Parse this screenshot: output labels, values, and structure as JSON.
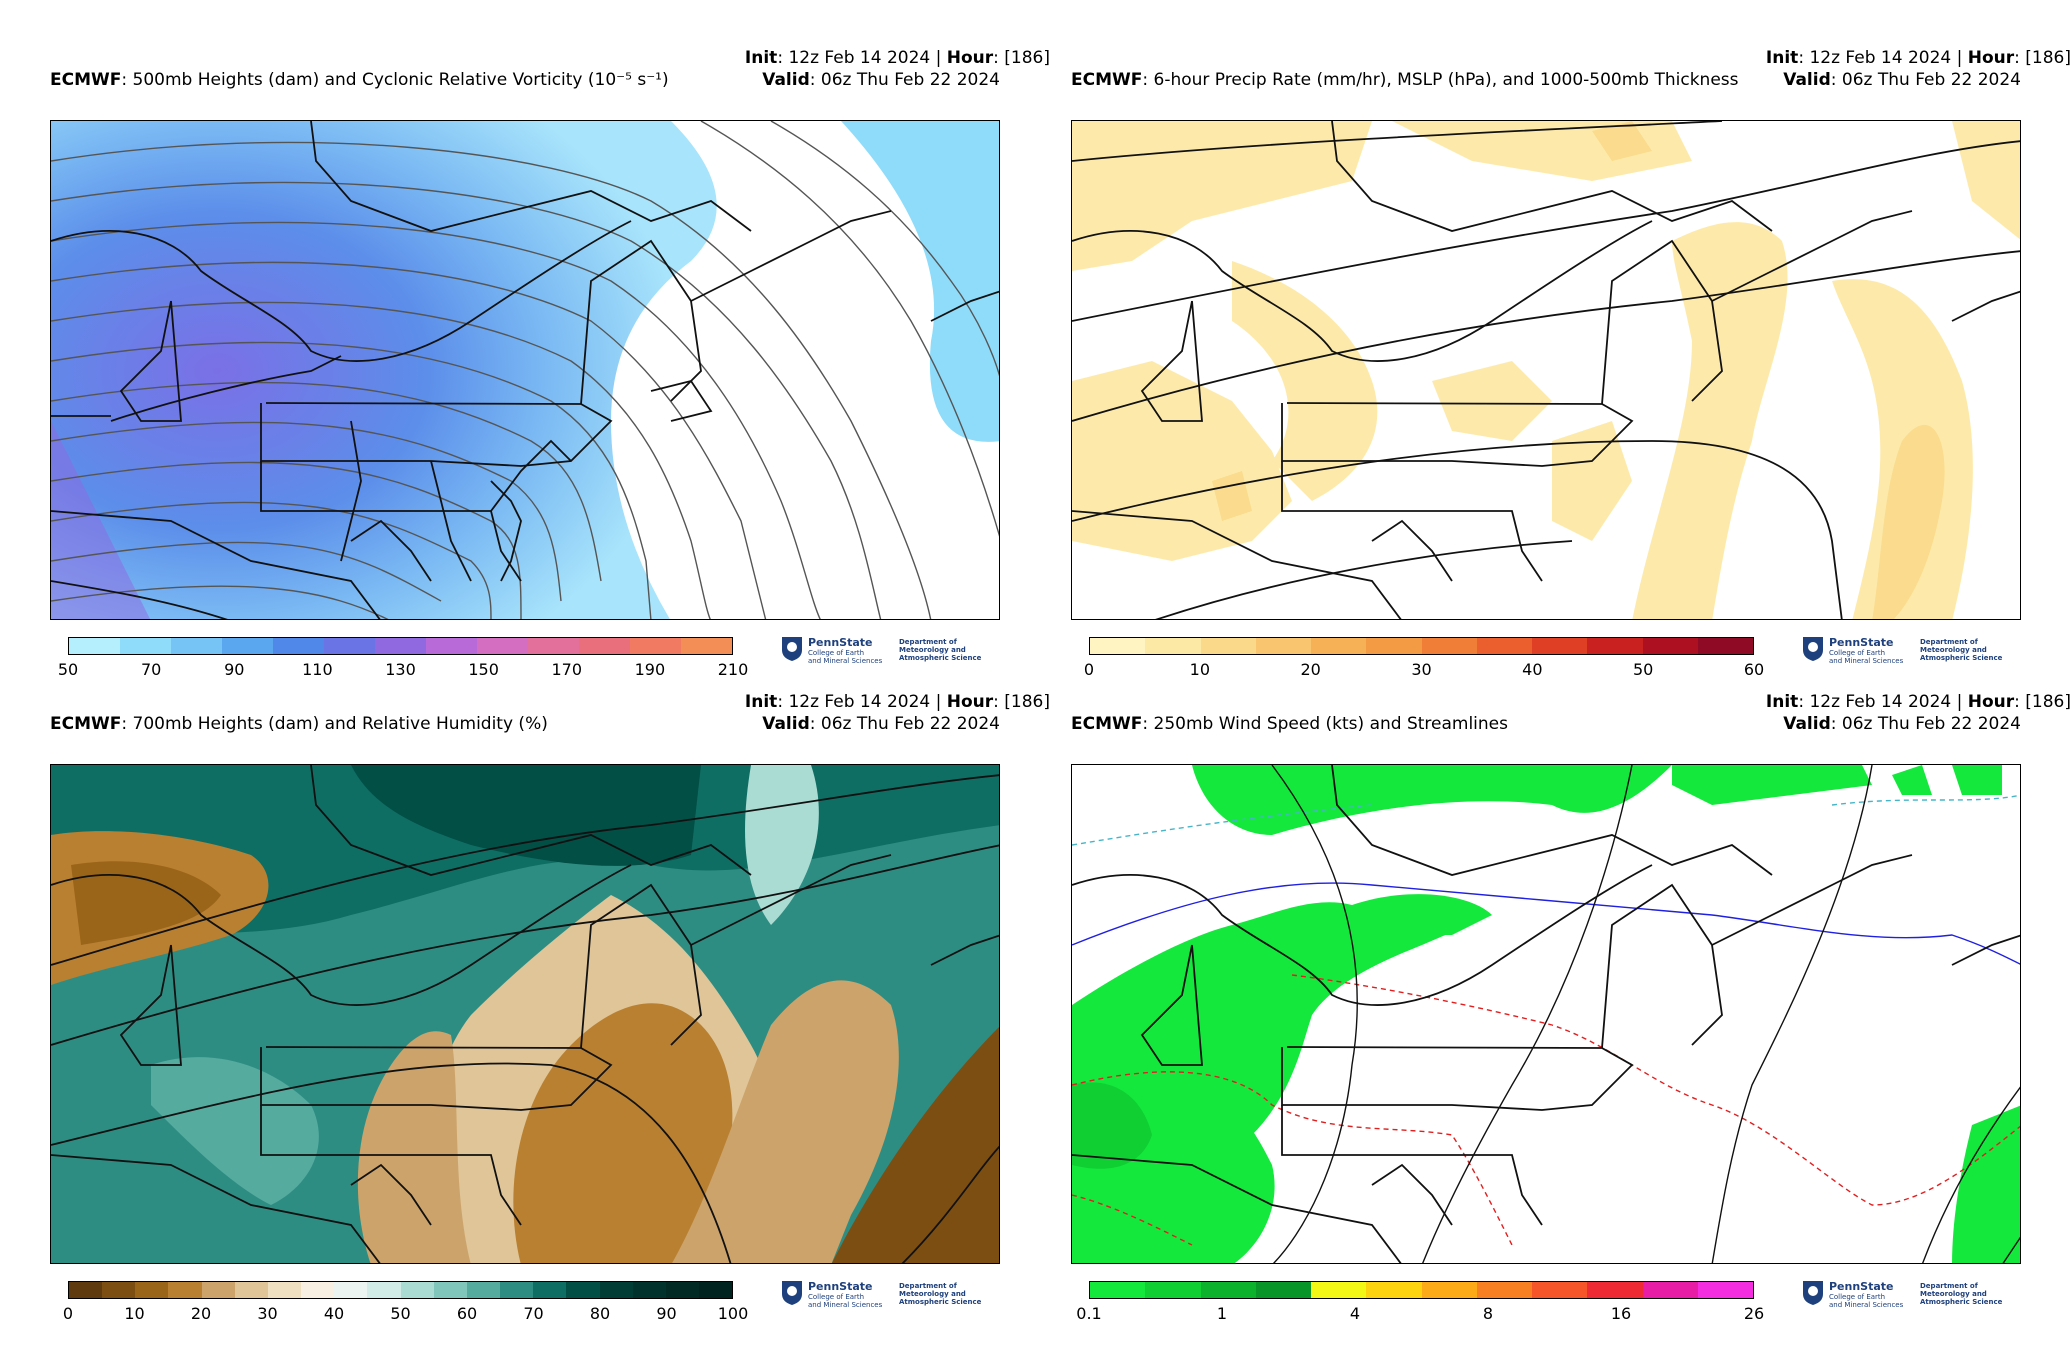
{
  "common": {
    "init_label": "Init",
    "init_value": ": 12z Feb 14 2024 | ",
    "hour_label": "Hour",
    "hour_value": ": [186]",
    "valid_label": "Valid",
    "valid_value": ": 06z Thu Feb 22 2024",
    "model": "ECMWF",
    "logo_name": "PennState",
    "logo_sub": "College of Earth\nand Mineral Sciences",
    "logo_dept": "Department of\nMeteorology and\nAtmospheric Science"
  },
  "panels": [
    {
      "title": ": 500mb Heights (dam) and Cyclonic Relative Vorticity (10⁻⁵ s⁻¹)",
      "colorbar": {
        "colors": [
          "#b5eefc",
          "#8fdcfa",
          "#76c4f5",
          "#5aa6ef",
          "#4f88e8",
          "#6a74e4",
          "#9068e0",
          "#b76ad8",
          "#d46ec0",
          "#e2709a",
          "#ea6f7d",
          "#f07a62",
          "#f38e56"
        ],
        "ticks": [
          "50",
          "70",
          "90",
          "110",
          "130",
          "150",
          "170",
          "190",
          "210"
        ]
      }
    },
    {
      "title": ": 6-hour Precip Rate (mm/hr), MSLP (hPa), and 1000-500mb Thickness",
      "colorbar": {
        "colors": [
          "#fff4c2",
          "#fde9a6",
          "#fbd98a",
          "#f9c66f",
          "#f6b157",
          "#f39a45",
          "#f07e37",
          "#ea5f2d",
          "#de3f25",
          "#c8211f",
          "#ad1020",
          "#8f0a24"
        ],
        "ticks": [
          "0",
          "10",
          "20",
          "30",
          "40",
          "50",
          "60"
        ]
      }
    },
    {
      "title": ": 700mb Heights (dam) and Relative Humidity (%)",
      "colorbar": {
        "colors": [
          "#5e3a0e",
          "#7c4e12",
          "#9a6519",
          "#b98032",
          "#cca36a",
          "#dfc597",
          "#efe0c2",
          "#f8f1e3",
          "#ebf4f1",
          "#d1ece6",
          "#abdcd3",
          "#81c6bb",
          "#56ab9f",
          "#2e8d82",
          "#0f6e64",
          "#024f46",
          "#013d35",
          "#01322b",
          "#012a24",
          "#01231f"
        ],
        "ticks": [
          "0",
          "10",
          "20",
          "30",
          "40",
          "50",
          "60",
          "70",
          "80",
          "90",
          "100"
        ]
      }
    },
    {
      "title": ": 250mb Wind Speed (kts) and Streamlines",
      "colorbar": {
        "colors": [
          "#14e83c",
          "#0fcf33",
          "#0db22c",
          "#0a9528",
          "#f3f716",
          "#fdd20e",
          "#fcaa18",
          "#f98022",
          "#f6552a",
          "#ee2a35",
          "#e81da5",
          "#f42ee0"
        ],
        "ticks": [
          "0.1",
          "1",
          "4",
          "8",
          "16",
          "26"
        ]
      }
    }
  ]
}
